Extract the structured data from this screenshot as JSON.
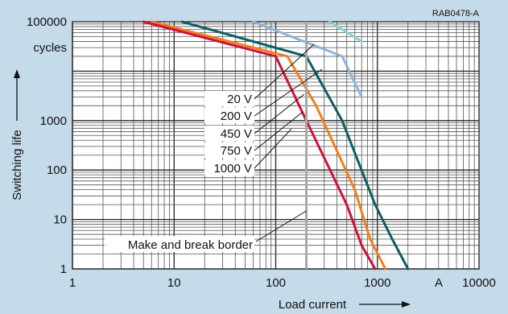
{
  "chart_data": {
    "type": "line",
    "x_scale": "log",
    "y_scale": "log",
    "xlim": [
      1,
      10000
    ],
    "ylim": [
      1,
      100000
    ],
    "xlabel": "Load current",
    "ylabel": "Switching life",
    "x_unit": "A",
    "y_unit": "cycles",
    "figure_id": "RAB0478-A",
    "x_ticks": [
      "1",
      "10",
      "100",
      "1000",
      "10000"
    ],
    "y_ticks": [
      "1",
      "10",
      "100",
      "1000",
      "100000"
    ],
    "grid": true,
    "series": [
      {
        "name": "20 V",
        "color": "#7fd3d3",
        "points": [
          [
            340,
            100000
          ],
          [
            700,
            40000
          ]
        ]
      },
      {
        "name": "200 V",
        "color": "#8cb4d8",
        "points": [
          [
            60,
            100000
          ],
          [
            450,
            20000
          ],
          [
            700,
            3000
          ]
        ]
      },
      {
        "name": "450 V",
        "color": "#0d5d63",
        "points": [
          [
            12,
            100000
          ],
          [
            200,
            20000
          ],
          [
            450,
            1000
          ],
          [
            950,
            20
          ],
          [
            1400,
            4
          ],
          [
            2000,
            1
          ]
        ]
      },
      {
        "name": "750 V",
        "color": "#f07f1a",
        "points": [
          [
            6,
            100000
          ],
          [
            130,
            20000
          ],
          [
            250,
            2000
          ],
          [
            600,
            40
          ],
          [
            850,
            4
          ],
          [
            1200,
            1
          ]
        ]
      },
      {
        "name": "1000 V",
        "color": "#d0103a",
        "points": [
          [
            5,
            100000
          ],
          [
            100,
            20000
          ],
          [
            200,
            1000
          ],
          [
            500,
            20
          ],
          [
            700,
            3
          ],
          [
            950,
            1
          ]
        ]
      }
    ],
    "annotations": [
      {
        "text": "Make and break border",
        "x": 200
      }
    ]
  }
}
